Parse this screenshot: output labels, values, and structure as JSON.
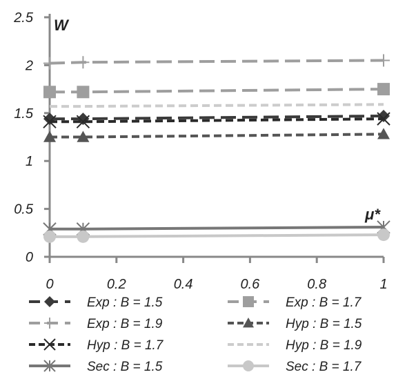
{
  "chart_data": {
    "type": "line",
    "title": "",
    "xlabel": "μ*",
    "ylabel": "W",
    "xlim": [
      0,
      1
    ],
    "ylim": [
      0,
      2.5
    ],
    "x_ticks": [
      "0",
      "0.2",
      "0.4",
      "0.6",
      "0.8",
      "1"
    ],
    "y_ticks": [
      "0",
      "0.5",
      "1",
      "1.5",
      "2",
      "2.5"
    ],
    "grid": false,
    "legend": "bottom",
    "series": [
      {
        "name": "Exp : B = 1.5",
        "x": [
          0,
          0.1,
          1
        ],
        "y": [
          1.44,
          1.44,
          1.47
        ],
        "color": "#3a3a3a",
        "dash": "long",
        "marker": "diamond"
      },
      {
        "name": "Exp : B = 1.7",
        "x": [
          0,
          0.1,
          1
        ],
        "y": [
          1.72,
          1.72,
          1.75
        ],
        "color": "#9e9e9e",
        "dash": "long",
        "marker": "square"
      },
      {
        "name": "Exp : B = 1.9",
        "x": [
          0,
          0.1,
          1
        ],
        "y": [
          2.02,
          2.03,
          2.05
        ],
        "color": "#9e9e9e",
        "dash": "long",
        "marker": "plus"
      },
      {
        "name": "Hyp : B = 1.5",
        "x": [
          0,
          0.1,
          1
        ],
        "y": [
          1.25,
          1.25,
          1.28
        ],
        "color": "#555555",
        "dash": "short",
        "marker": "triangle"
      },
      {
        "name": "Hyp : B = 1.7",
        "x": [
          0,
          0.1,
          1
        ],
        "y": [
          1.41,
          1.41,
          1.44
        ],
        "color": "#2a2a2a",
        "dash": "short",
        "marker": "x"
      },
      {
        "name": "Hyp : B = 1.9",
        "x": [
          0,
          0.1,
          1
        ],
        "y": [
          1.57,
          1.57,
          1.59
        ],
        "color": "#cccccc",
        "dash": "short",
        "marker": "none"
      },
      {
        "name": "Sec : B = 1.5",
        "x": [
          0,
          0.1,
          1
        ],
        "y": [
          0.29,
          0.29,
          0.31
        ],
        "color": "#777777",
        "dash": "solid",
        "marker": "star"
      },
      {
        "name": "Sec : B = 1.7",
        "x": [
          0,
          0.1,
          1
        ],
        "y": [
          0.21,
          0.21,
          0.23
        ],
        "color": "#c8c8c8",
        "dash": "solid",
        "marker": "circle"
      }
    ]
  }
}
